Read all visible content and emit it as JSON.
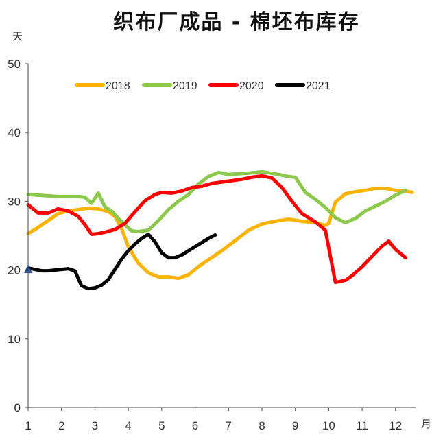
{
  "chart_data": {
    "type": "line",
    "title": "织布厂成品 - 棉坯布库存",
    "ylabel": "天",
    "xlabel": "月",
    "ylim": [
      0,
      50
    ],
    "xlim": [
      1,
      12.6
    ],
    "y_ticks": [
      0,
      10,
      20,
      30,
      40,
      50
    ],
    "x_ticks": [
      1,
      2,
      3,
      4,
      5,
      6,
      7,
      8,
      9,
      10,
      11,
      12
    ],
    "legend_position": "top",
    "grid": false,
    "series": [
      {
        "name": "2018",
        "color": "#FDB300",
        "x": [
          1.0,
          1.3,
          1.6,
          1.9,
          2.2,
          2.5,
          2.8,
          3.1,
          3.4,
          3.6,
          3.8,
          4.0,
          4.3,
          4.6,
          4.9,
          5.2,
          5.5,
          5.8,
          6.1,
          6.4,
          6.8,
          7.2,
          7.6,
          8.0,
          8.4,
          8.8,
          9.2,
          9.6,
          9.9,
          10.0,
          10.2,
          10.5,
          10.8,
          11.1,
          11.4,
          11.7,
          12.0,
          12.3,
          12.5
        ],
        "y": [
          25.3,
          26.2,
          27.2,
          28.2,
          28.6,
          28.8,
          29.0,
          28.9,
          28.5,
          27.8,
          26.0,
          23.4,
          21.0,
          19.6,
          19.0,
          19.0,
          18.8,
          19.3,
          20.5,
          21.5,
          22.8,
          24.3,
          25.8,
          26.7,
          27.1,
          27.4,
          27.1,
          26.9,
          26.5,
          26.8,
          29.9,
          31.1,
          31.4,
          31.6,
          31.9,
          31.9,
          31.6,
          31.5,
          31.3
        ]
      },
      {
        "name": "2019",
        "color": "#8CC84B",
        "x": [
          1.0,
          1.3,
          1.6,
          1.9,
          2.2,
          2.5,
          2.7,
          2.9,
          3.1,
          3.3,
          3.5,
          3.7,
          3.9,
          4.1,
          4.3,
          4.6,
          4.9,
          5.2,
          5.5,
          5.8,
          6.1,
          6.4,
          6.7,
          7.0,
          7.3,
          7.6,
          8.0,
          8.4,
          8.8,
          9.0,
          9.3,
          9.6,
          9.9,
          10.2,
          10.5,
          10.8,
          11.1,
          11.4,
          11.7,
          12.0,
          12.3
        ],
        "y": [
          31.0,
          30.9,
          30.8,
          30.7,
          30.7,
          30.7,
          30.6,
          29.7,
          31.2,
          29.2,
          28.6,
          27.5,
          26.6,
          25.7,
          25.6,
          25.8,
          27.2,
          28.8,
          30.0,
          31.0,
          32.5,
          33.6,
          34.2,
          33.9,
          34.0,
          34.1,
          34.3,
          34.0,
          33.6,
          33.5,
          31.3,
          30.3,
          29.1,
          27.6,
          26.9,
          27.5,
          28.6,
          29.3,
          30.0,
          30.9,
          31.6
        ]
      },
      {
        "name": "2020",
        "color": "#FF0000",
        "x": [
          1.0,
          1.3,
          1.6,
          1.9,
          2.2,
          2.5,
          2.7,
          2.9,
          3.1,
          3.3,
          3.6,
          3.9,
          4.2,
          4.5,
          4.8,
          5.0,
          5.3,
          5.6,
          5.9,
          6.2,
          6.5,
          6.8,
          7.1,
          7.4,
          7.7,
          8.0,
          8.3,
          8.6,
          8.9,
          9.2,
          9.6,
          9.9,
          10.2,
          10.5,
          10.7,
          11.0,
          11.3,
          11.6,
          11.8,
          12.0,
          12.3
        ],
        "y": [
          29.5,
          28.3,
          28.3,
          28.9,
          28.6,
          27.8,
          26.6,
          25.2,
          25.3,
          25.5,
          25.9,
          26.8,
          28.5,
          30.1,
          31.0,
          31.3,
          31.2,
          31.5,
          32.0,
          32.2,
          32.6,
          32.8,
          33.0,
          33.2,
          33.5,
          33.7,
          33.4,
          32.0,
          30.0,
          28.2,
          27.0,
          25.8,
          18.2,
          18.5,
          19.2,
          20.5,
          22.0,
          23.5,
          24.2,
          23.0,
          21.8
        ]
      },
      {
        "name": "2021",
        "color": "#000000",
        "x": [
          1.0,
          1.2,
          1.4,
          1.6,
          1.8,
          2.0,
          2.2,
          2.4,
          2.6,
          2.8,
          3.0,
          3.2,
          3.4,
          3.6,
          3.8,
          4.0,
          4.2,
          4.4,
          4.6,
          4.8,
          5.0,
          5.2,
          5.4,
          5.6,
          5.8,
          6.0,
          6.2,
          6.4,
          6.6
        ],
        "y": [
          20.3,
          20.1,
          19.9,
          19.9,
          20.0,
          20.1,
          20.2,
          19.9,
          17.7,
          17.3,
          17.4,
          17.8,
          18.6,
          20.1,
          21.6,
          22.8,
          23.8,
          24.6,
          25.2,
          24.1,
          22.5,
          21.8,
          21.8,
          22.2,
          22.8,
          23.4,
          24.0,
          24.6,
          25.1
        ]
      }
    ]
  }
}
